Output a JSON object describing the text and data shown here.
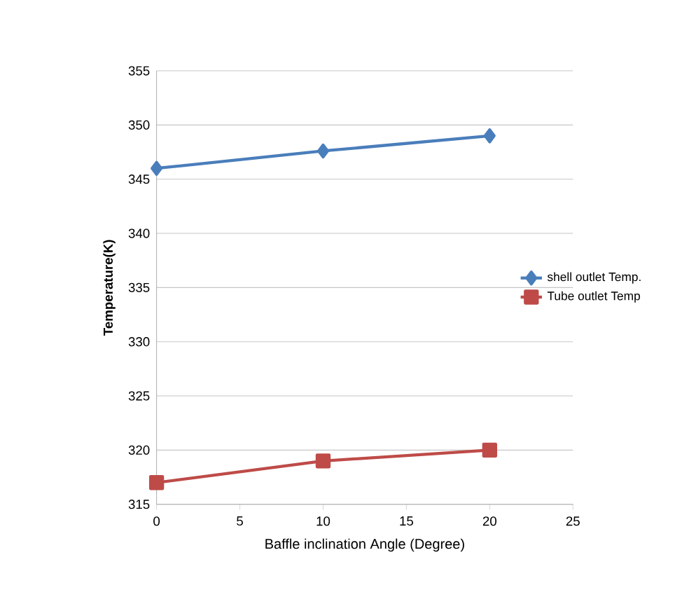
{
  "chart_data": {
    "type": "line",
    "xlabel": "Baffle inclination Angle (Degree)",
    "ylabel": "Temperature(K)",
    "x": [
      0,
      10,
      20
    ],
    "series": [
      {
        "name": "shell outlet Temp.",
        "color": "#4a7ebb",
        "marker": "diamond",
        "values": [
          346,
          347.6,
          349
        ]
      },
      {
        "name": "Tube outlet Temp",
        "color": "#be4b48",
        "marker": "square",
        "values": [
          317,
          319,
          320
        ]
      }
    ],
    "xlim": [
      0,
      25
    ],
    "xticks": [
      0,
      5,
      10,
      15,
      20,
      25
    ],
    "ylim": [
      315,
      355
    ],
    "yticks": [
      315,
      320,
      325,
      330,
      335,
      340,
      345,
      350,
      355
    ],
    "grid": "y",
    "legend": "right",
    "line_style": "solid"
  }
}
